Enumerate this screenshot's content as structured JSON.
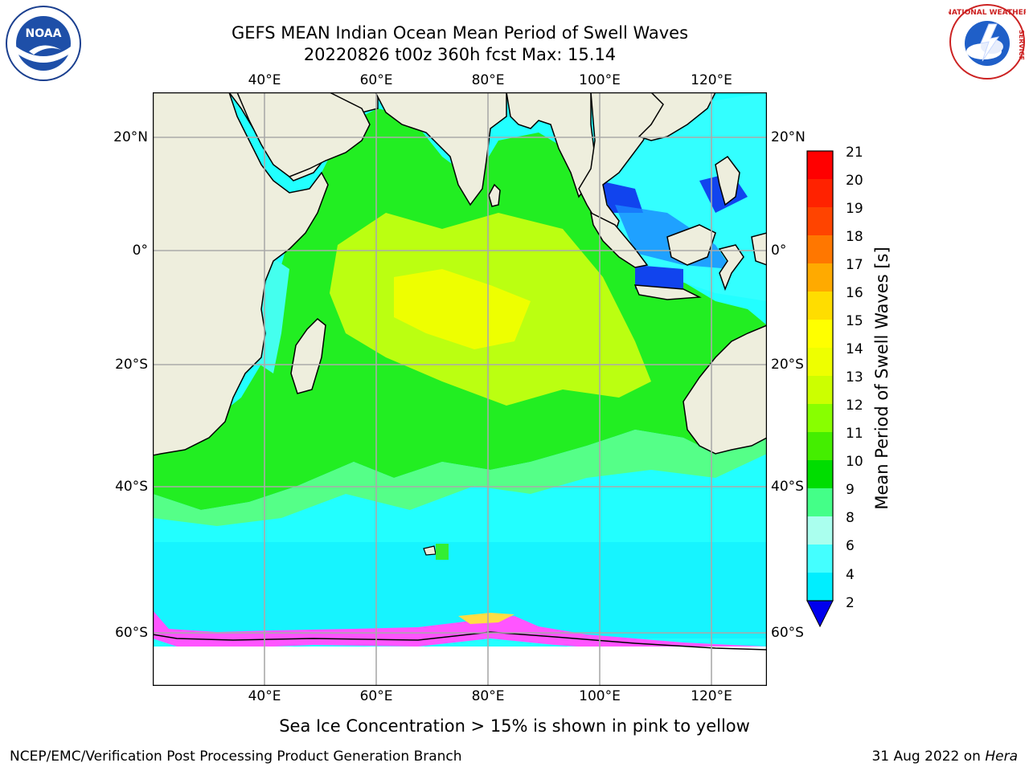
{
  "header": {
    "title_line1": "GEFS MEAN Indian Ocean Mean Period of Swell Waves",
    "title_line2": "20220826 t00z 360h fcst   Max: 15.14"
  },
  "logos": {
    "left": {
      "text": "NOAA",
      "icon": "noaa-logo"
    },
    "right": {
      "text_top": "NATIONAL WEATHER",
      "text_side": "SERVICE",
      "icon": "nws-logo"
    }
  },
  "map": {
    "lon_labels_top": [
      "40°E",
      "60°E",
      "80°E",
      "100°E",
      "120°E"
    ],
    "lon_labels_bottom": [
      "40°E",
      "60°E",
      "80°E",
      "100°E",
      "120°E"
    ],
    "lat_labels_left": [
      "20°N",
      "0°",
      "20°S",
      "40°S",
      "60°S"
    ],
    "lat_labels_right": [
      "20°N",
      "0°",
      "20°S",
      "40°S",
      "60°S"
    ],
    "lon_range": [
      20,
      130
    ],
    "lat_range": [
      -68,
      27
    ],
    "gridlines": true,
    "colors": {
      "land": "#eeeedd",
      "ocean_low": "#00ffff",
      "ocean_mid": "#33ff33",
      "ocean_high": "#ccff00",
      "ocean_peak": "#ffff00",
      "sea_ice": "#ff44ff",
      "grid": "#aaaaaa"
    }
  },
  "colorbar": {
    "label": "Mean Period of Swell Waves [s]",
    "ticks": [
      "21",
      "20",
      "19",
      "18",
      "17",
      "16",
      "15",
      "14",
      "13",
      "12",
      "11",
      "10",
      "9",
      "8",
      "6",
      "4",
      "2"
    ],
    "colors": [
      "#0000dd",
      "#0066ff",
      "#00ddff",
      "#33ffff",
      "#88ffff",
      "#bbffee",
      "#44ff88",
      "#00dd00",
      "#44ee00",
      "#88ff00",
      "#ccff00",
      "#eeff00",
      "#ffff00",
      "#ffee00",
      "#ffcc00",
      "#ffaa00",
      "#ff8800",
      "#ff6600",
      "#ff4400",
      "#ff2200",
      "#ff0000"
    ]
  },
  "footer": {
    "note": "Sea Ice Concentration > 15% is shown in pink to yellow",
    "credit": "NCEP/EMC/Verification Post Processing Product Generation Branch",
    "date": "31 Aug 2022 on ",
    "host": "Hera"
  }
}
